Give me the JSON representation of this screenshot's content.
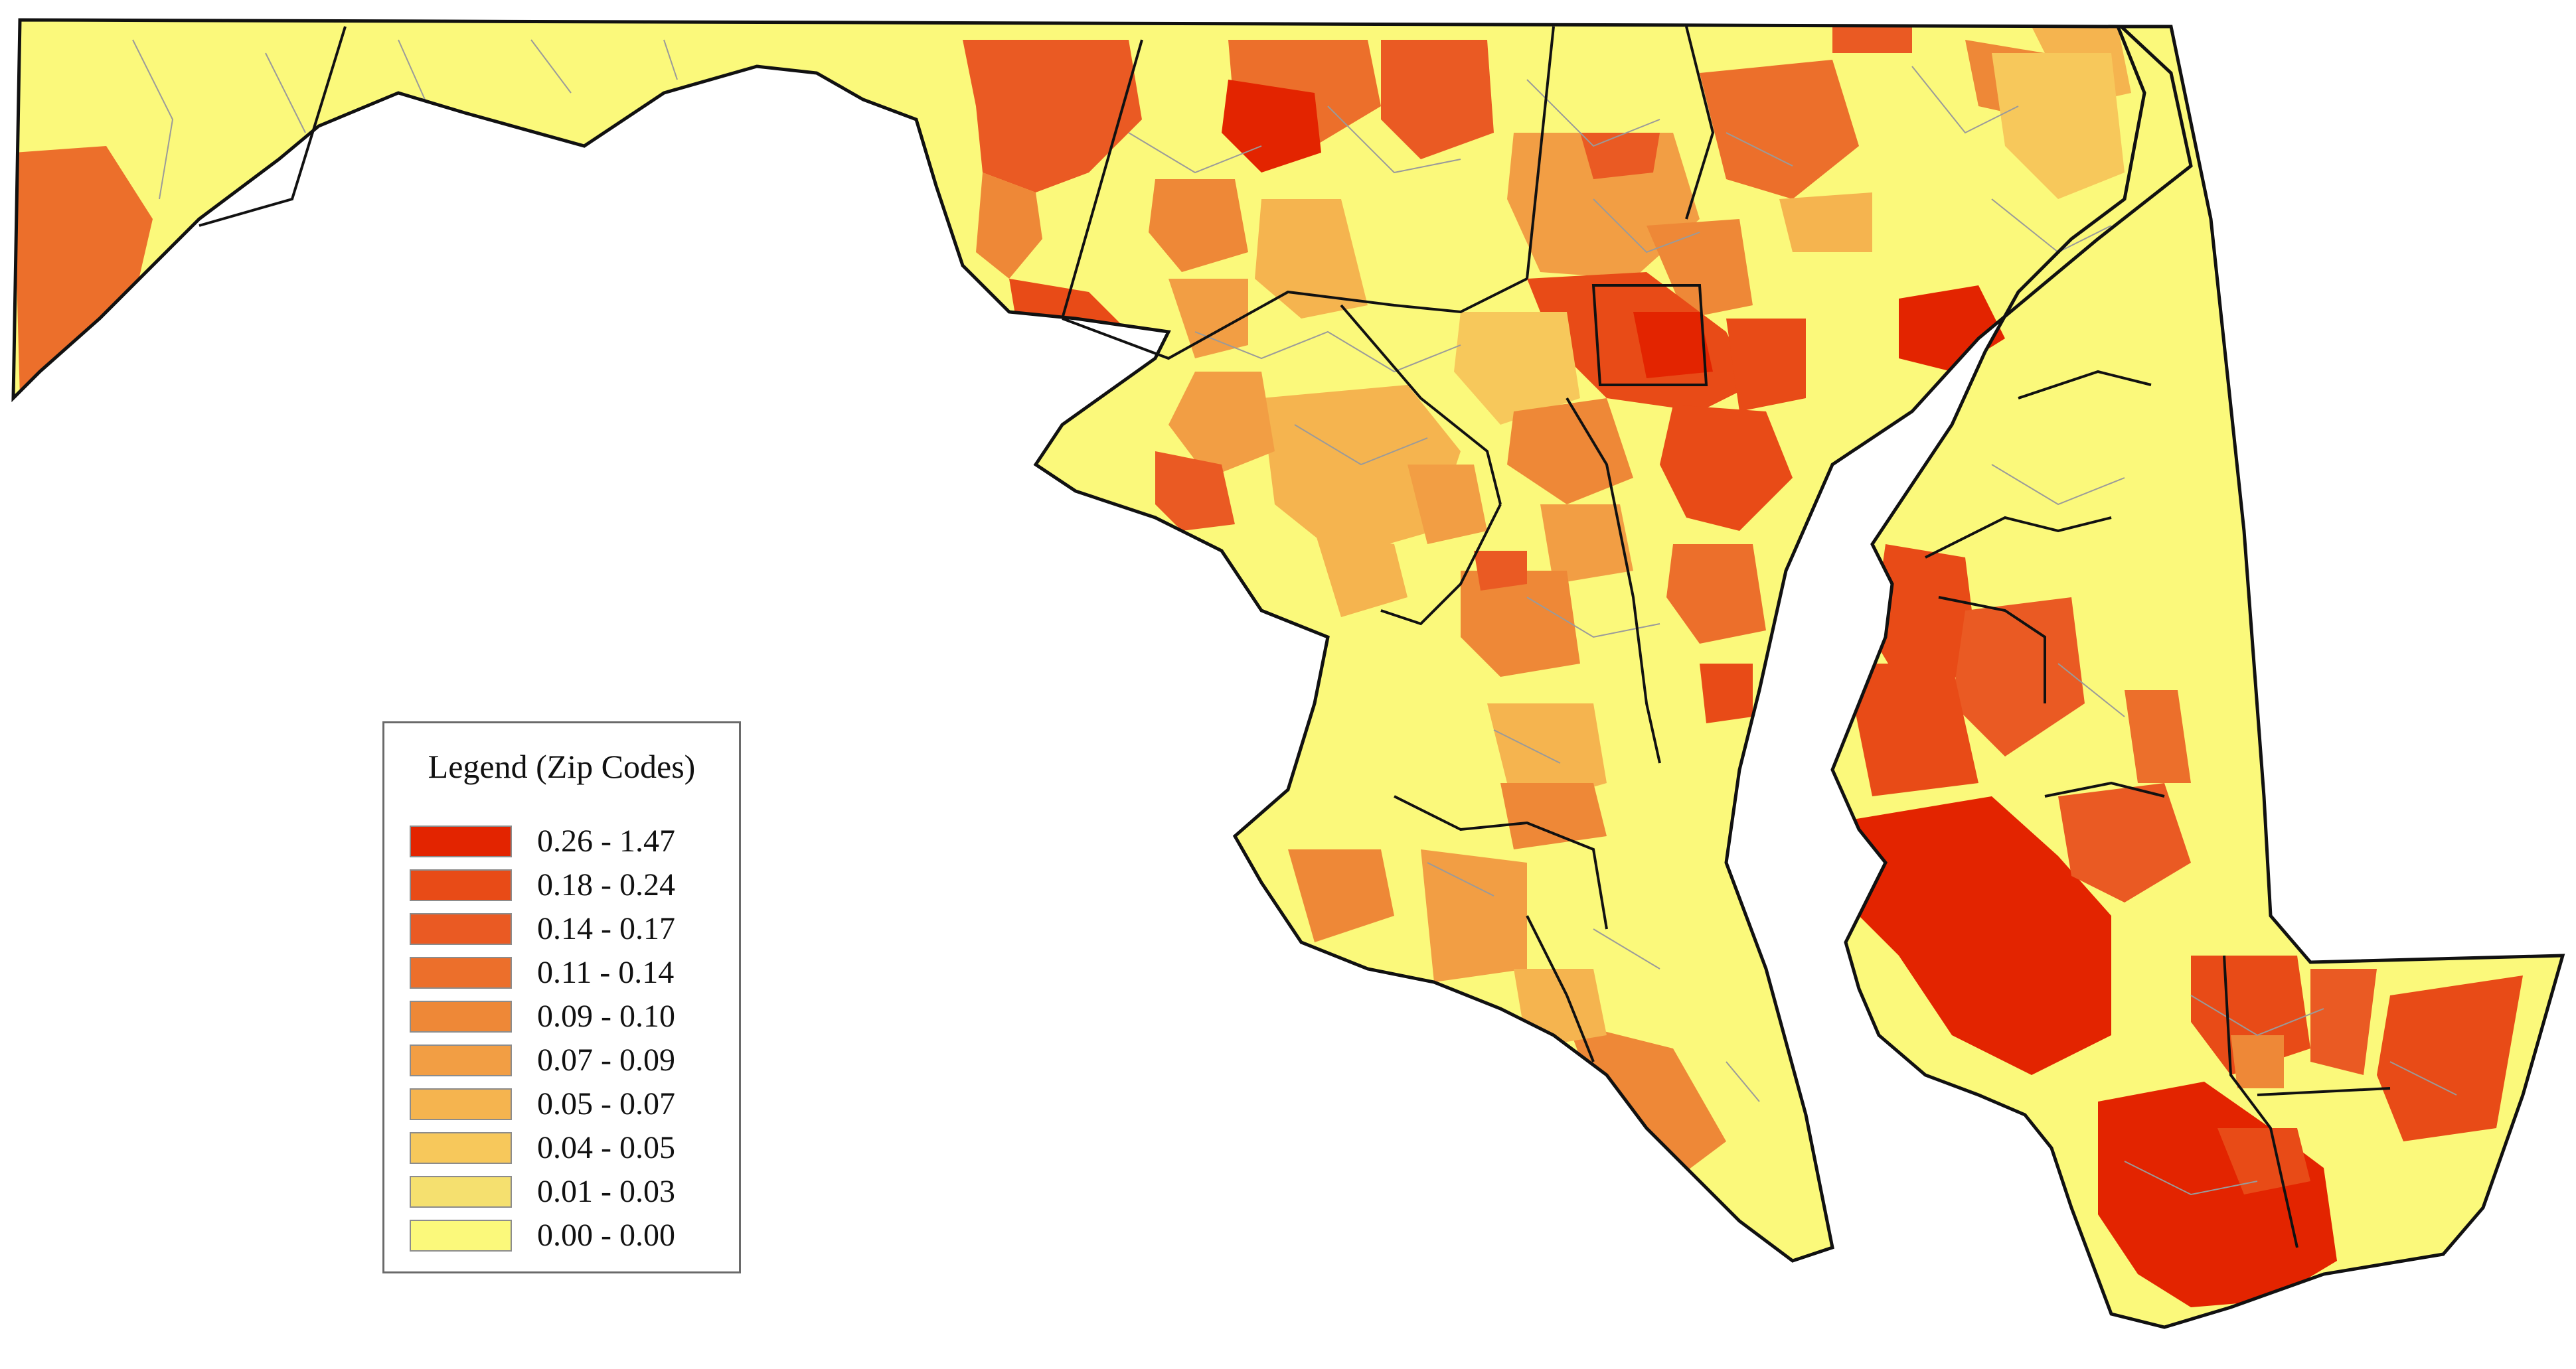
{
  "map": {
    "fill_colors": [
      "#e32400",
      "#e84b17",
      "#ea5a23",
      "#ec6f2b",
      "#ee8837",
      "#f29e44",
      "#f5b44f",
      "#f7c85b",
      "#f5e06f",
      "#fbf97b"
    ],
    "outline_color": "#111111",
    "internal_boundary_color": "#9a9a9a"
  },
  "legend": {
    "title": "Legend (Zip Codes)",
    "items": [
      {
        "label": "0.26 - 1.47",
        "color": "#e32400"
      },
      {
        "label": "0.18 - 0.24",
        "color": "#e84b17"
      },
      {
        "label": "0.14 - 0.17",
        "color": "#ea5a23"
      },
      {
        "label": "0.11 - 0.14",
        "color": "#ec6f2b"
      },
      {
        "label": "0.09 - 0.10",
        "color": "#ee8837"
      },
      {
        "label": "0.07 - 0.09",
        "color": "#f29e44"
      },
      {
        "label": "0.05 - 0.07",
        "color": "#f5b44f"
      },
      {
        "label": "0.04 - 0.05",
        "color": "#f7c85b"
      },
      {
        "label": "0.01 - 0.03",
        "color": "#f5e06f"
      },
      {
        "label": "0.00 - 0.00",
        "color": "#fbf97b"
      }
    ]
  }
}
